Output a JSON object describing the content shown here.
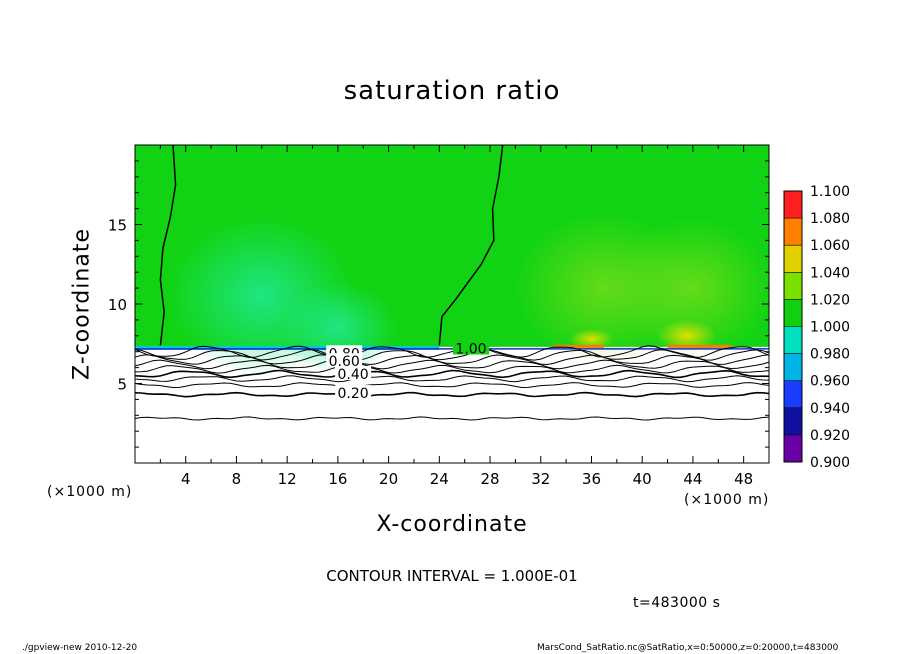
{
  "chart_data": {
    "type": "heatmap",
    "title": "saturation ratio",
    "xlabel": "X-coordinate",
    "ylabel": "Z-coordinate",
    "x_unit": "(×1000 m)",
    "x_unit_right": "(×1000 m)",
    "xlim": [
      0,
      50
    ],
    "ylim": [
      0,
      20
    ],
    "x_ticks": [
      4,
      8,
      12,
      16,
      20,
      24,
      28,
      32,
      36,
      40,
      44,
      48
    ],
    "y_ticks": [
      5,
      10,
      15
    ],
    "colorbar": {
      "levels": [
        0.9,
        0.92,
        0.94,
        0.96,
        0.98,
        1.0,
        1.02,
        1.04,
        1.06,
        1.08,
        1.1
      ],
      "labels": [
        "0.900",
        "0.920",
        "0.940",
        "0.960",
        "0.980",
        "1.000",
        "1.020",
        "1.040",
        "1.060",
        "1.080",
        "1.100"
      ],
      "colors": [
        "#6a00a8",
        "#1010a0",
        "#1a3cff",
        "#00b4e6",
        "#00e0c0",
        "#10d010",
        "#7ae000",
        "#e0d000",
        "#ff8000",
        "#ff2020",
        "#ff8a8a"
      ]
    },
    "contour_labels": [
      {
        "text": "1.00",
        "x": 26.5,
        "y": 7.2
      },
      {
        "text": "0.80",
        "x": 16.5,
        "y": 6.9
      },
      {
        "text": "0.60",
        "x": 16.5,
        "y": 6.4
      },
      {
        "text": "0.40",
        "x": 17.2,
        "y": 5.6
      },
      {
        "text": "0.20",
        "x": 17.2,
        "y": 4.4
      }
    ],
    "contour_lines_z": [
      2.8,
      4.3,
      4.9,
      5.3,
      5.6,
      5.9,
      6.2,
      6.5,
      6.8,
      7.0
    ],
    "saturation_boundary_z": 7.3,
    "contour_interval": "CONTOUR INTERVAL = 1.000E-01",
    "time": "t=483000 s"
  },
  "footer": {
    "left": "./gpview-new  2010-12-20",
    "right": "MarsCond_SatRatio.nc@SatRatio,x=0:50000,z=0:20000,t=483000"
  }
}
